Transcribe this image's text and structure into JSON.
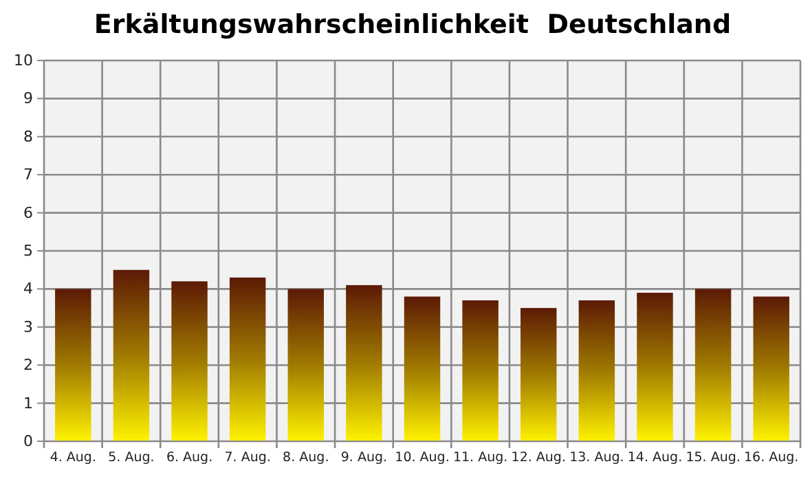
{
  "chart_data": {
    "type": "bar",
    "title": "Erkältungswahrscheinlichkeit  Deutschland",
    "categories": [
      "4. Aug.",
      "5. Aug.",
      "6. Aug.",
      "7. Aug.",
      "8. Aug.",
      "9. Aug.",
      "10. Aug.",
      "11. Aug.",
      "12. Aug.",
      "13. Aug.",
      "14. Aug.",
      "15. Aug.",
      "16. Aug."
    ],
    "values": [
      4.0,
      4.5,
      4.2,
      4.3,
      4.0,
      4.1,
      3.8,
      3.7,
      3.5,
      3.7,
      3.9,
      4.0,
      3.8
    ],
    "color": "#5c1a05",
    "ylim": [
      0,
      10
    ],
    "yticks": [
      0,
      1,
      2,
      3,
      4,
      5,
      6,
      7,
      8,
      9,
      10
    ],
    "grid": true
  }
}
